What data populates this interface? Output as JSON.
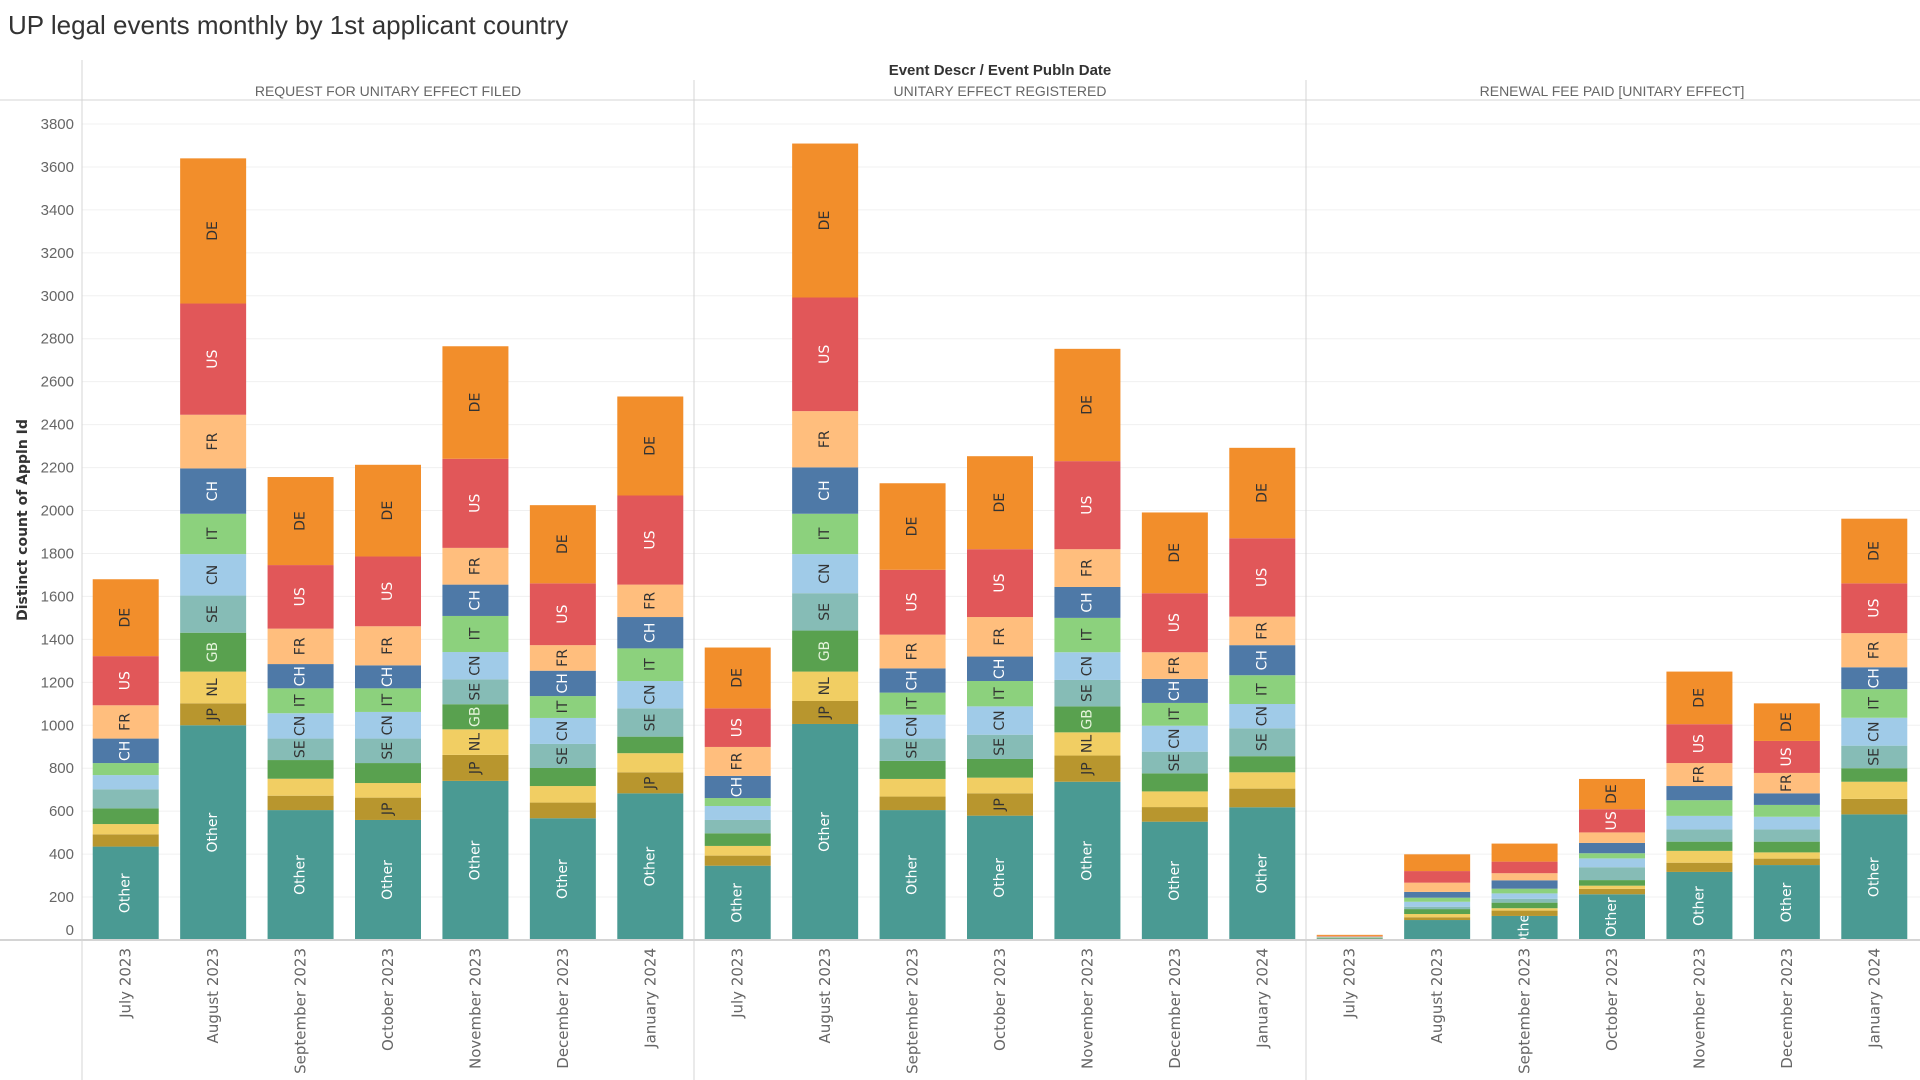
{
  "title": "UP legal events monthly by 1st applicant country",
  "chart_data": {
    "type": "bar",
    "stacked": true,
    "column_header": "Event Descr  /  Event Publn Date",
    "ylabel": "Distinct count of Appln Id",
    "ylim": [
      0,
      3800
    ],
    "yticks": [
      0,
      200,
      400,
      600,
      800,
      1000,
      1200,
      1400,
      1600,
      1800,
      2000,
      2200,
      2400,
      2600,
      2800,
      3000,
      3200,
      3400,
      3600,
      3800
    ],
    "grid": true,
    "categories": [
      "July 2023",
      "August 2023",
      "September 2023",
      "October 2023",
      "November 2023",
      "December 2023",
      "January 2024"
    ],
    "stack_order": [
      "Other",
      "JP",
      "NL",
      "GB",
      "SE",
      "CN",
      "IT",
      "CH",
      "FR",
      "US",
      "DE"
    ],
    "colors": {
      "Other": "#4a9a93",
      "JP": "#b8962e",
      "NL": "#f1ce63",
      "GB": "#59a14f",
      "SE": "#86bcb6",
      "CN": "#a0cbe8",
      "IT": "#8cd17d",
      "CH": "#4e79a7",
      "FR": "#ffbe7d",
      "US": "#e15759",
      "DE": "#f28e2b"
    },
    "label_colors": {
      "Other": "#ffffff",
      "JP": "#333333",
      "NL": "#333333",
      "GB": "#e6f5dc",
      "SE": "#333333",
      "CN": "#333333",
      "IT": "#333333",
      "CH": "#ffffff",
      "FR": "#333333",
      "US": "#ffffff",
      "DE": "#333333"
    },
    "panels": [
      {
        "name": "REQUEST FOR UNITARY EFFECT FILED",
        "values": [
          [
            435,
            57,
            48,
            73,
            89,
            66,
            56,
            114,
            155,
            229,
            358
          ],
          [
            1000,
            102,
            148,
            181,
            173,
            193,
            188,
            211,
            250,
            518,
            676
          ],
          [
            605,
            67,
            79,
            87,
            100,
            118,
            116,
            113,
            165,
            296,
            410
          ],
          [
            559,
            104,
            68,
            93,
            114,
            124,
            110,
            107,
            182,
            325,
            427
          ],
          [
            741,
            121,
            119,
            117,
            116,
            127,
            168,
            146,
            171,
            415,
            524
          ],
          [
            567,
            73,
            77,
            84,
            112,
            121,
            102,
            118,
            119,
            288,
            364
          ],
          [
            683,
            98,
            89,
            77,
            132,
            127,
            152,
            146,
            151,
            415,
            461
          ]
        ]
      },
      {
        "name": "UNITARY EFFECT REGISTERED",
        "values": [
          [
            346,
            47,
            45,
            59,
            62,
            65,
            37,
            103,
            135,
            180,
            283
          ],
          [
            1006,
            107,
            137,
            191,
            174,
            182,
            188,
            216,
            262,
            529,
            717
          ],
          [
            605,
            63,
            82,
            84,
            104,
            111,
            103,
            113,
            157,
            302,
            403
          ],
          [
            579,
            104,
            73,
            87,
            113,
            132,
            118,
            114,
            184,
            316,
            433
          ],
          [
            737,
            122,
            108,
            121,
            123,
            129,
            160,
            144,
            176,
            410,
            523
          ],
          [
            551,
            68,
            73,
            84,
            101,
            121,
            106,
            112,
            124,
            275,
            376
          ],
          [
            618,
            87,
            76,
            75,
            130,
            113,
            134,
            140,
            133,
            365,
            421
          ]
        ]
      },
      {
        "name": "RENEWAL FEE PAID [UNITARY EFFECT]",
        "values": [
          [
            8,
            1,
            1,
            1,
            1,
            1,
            1,
            1,
            2,
            2,
            5
          ],
          [
            93,
            13,
            15,
            23,
            11,
            23,
            19,
            27,
            43,
            54,
            78
          ],
          [
            112,
            25,
            11,
            26,
            18,
            25,
            22,
            39,
            33,
            54,
            84
          ],
          [
            213,
            25,
            15,
            26,
            60,
            41,
            24,
            48,
            49,
            108,
            141
          ],
          [
            317,
            43,
            55,
            43,
            57,
            63,
            73,
            66,
            107,
            181,
            245
          ],
          [
            349,
            30,
            29,
            50,
            57,
            59,
            55,
            54,
            95,
            149,
            175
          ],
          [
            585,
            72,
            80,
            63,
            105,
            130,
            133,
            102,
            159,
            232,
            301
          ]
        ]
      }
    ]
  }
}
